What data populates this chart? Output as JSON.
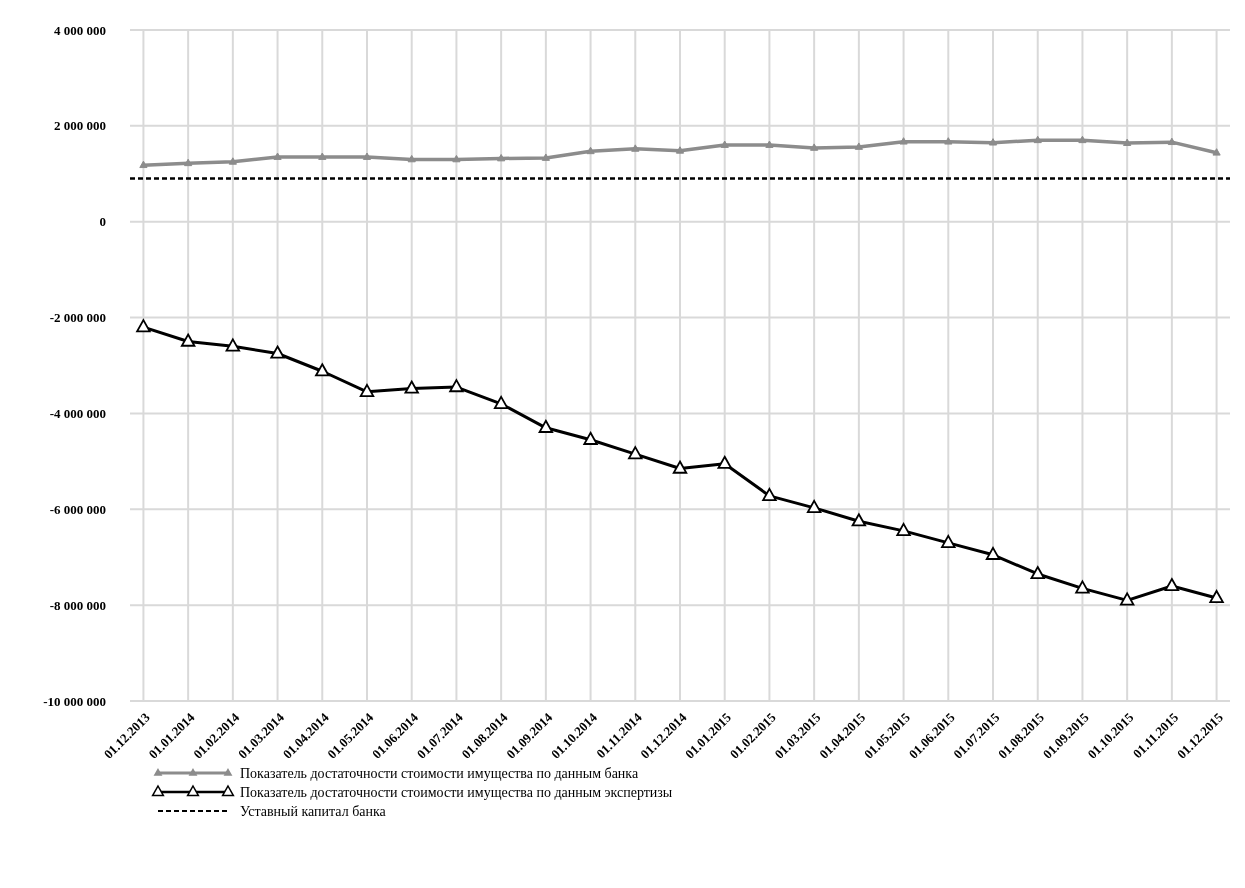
{
  "chart_data": {
    "type": "line",
    "categories": [
      "01.12.2013",
      "01.01.2014",
      "01.02.2014",
      "01.03.2014",
      "01.04.2014",
      "01.05.2014",
      "01.06.2014",
      "01.07.2014",
      "01.08.2014",
      "01.09.2014",
      "01.10.2014",
      "01.11.2014",
      "01.12.2014",
      "01.01.2015",
      "01.02.2015",
      "01.03.2015",
      "01.04.2015",
      "01.05.2015",
      "01.06.2015",
      "01.07.2015",
      "01.08.2015",
      "01.09.2015",
      "01.10.2015",
      "01.11.2015",
      "01.12.2015"
    ],
    "series": [
      {
        "name": "Показатель достаточности стоимости имущества по данным банка",
        "color": "#8c8c8c",
        "marker": "triangle",
        "values": [
          1180000,
          1220000,
          1250000,
          1350000,
          1350000,
          1350000,
          1300000,
          1300000,
          1320000,
          1330000,
          1470000,
          1520000,
          1480000,
          1600000,
          1600000,
          1540000,
          1560000,
          1670000,
          1670000,
          1650000,
          1700000,
          1700000,
          1640000,
          1660000,
          1440000
        ]
      },
      {
        "name": "Показатель достаточности стоимости имущества по данным экспертизы",
        "color": "#000000",
        "marker": "triangle",
        "values": [
          -2200000,
          -2500000,
          -2600000,
          -2750000,
          -3120000,
          -3550000,
          -3480000,
          -3450000,
          -3800000,
          -4300000,
          -4550000,
          -4850000,
          -5150000,
          -5050000,
          -5720000,
          -5970000,
          -6250000,
          -6450000,
          -6700000,
          -6950000,
          -7350000,
          -7650000,
          -7900000,
          -7600000,
          -7850000
        ]
      }
    ],
    "ref_lines": [
      {
        "axis": "y",
        "value": 900000,
        "label": "Уставный капитал банка",
        "color": "#000000",
        "line_style": "dashed"
      }
    ],
    "ylim": [
      -10000000,
      4000000
    ],
    "yticks": [
      {
        "value": -10000000,
        "label": "-10 000 000"
      },
      {
        "value": -8000000,
        "label": "-8 000 000"
      },
      {
        "value": -6000000,
        "label": "-6 000 000"
      },
      {
        "value": -4000000,
        "label": "-4 000 000"
      },
      {
        "value": -2000000,
        "label": "-2 000 000"
      },
      {
        "value": 0,
        "label": "0"
      },
      {
        "value": 2000000,
        "label": "2 000 000"
      },
      {
        "value": 4000000,
        "label": "4 000 000"
      }
    ],
    "grid": true,
    "legend": "bottom",
    "line_style": "solid"
  }
}
